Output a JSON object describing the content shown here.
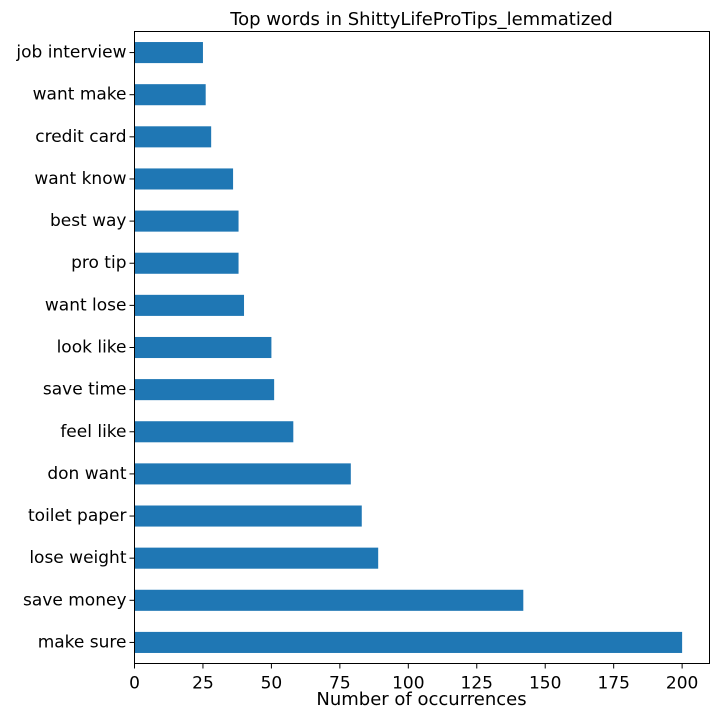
{
  "chart_data": {
    "type": "bar",
    "orientation": "horizontal",
    "title": "Top words in ShittyLifeProTips_lemmatized",
    "xlabel": "Number of occurrences",
    "ylabel": "",
    "categories": [
      "make sure",
      "save money",
      "lose weight",
      "toilet paper",
      "don want",
      "feel like",
      "save time",
      "look like",
      "want lose",
      "pro tip",
      "best way",
      "want know",
      "credit card",
      "want make",
      "job interview"
    ],
    "values": [
      200,
      142,
      89,
      83,
      79,
      58,
      51,
      50,
      40,
      38,
      38,
      36,
      28,
      26,
      25
    ],
    "xlim": [
      0,
      210
    ],
    "xticks": [
      0,
      25,
      50,
      75,
      100,
      125,
      150,
      175,
      200
    ],
    "grid": false,
    "bar_color": "#1f77b4"
  }
}
